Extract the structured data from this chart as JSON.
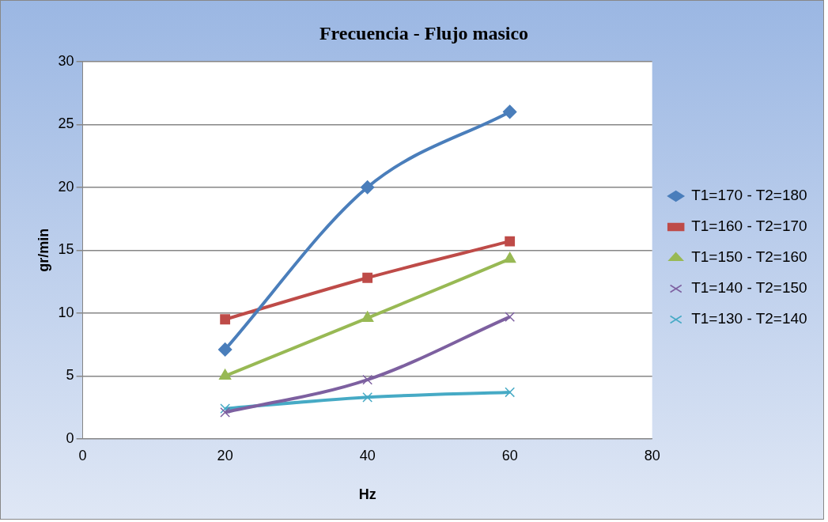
{
  "chart_data": {
    "type": "line",
    "title": "Frecuencia - Flujo masico",
    "xlabel": "Hz",
    "ylabel": "gr/min",
    "xlim": [
      0,
      80
    ],
    "xticks": [
      0,
      20,
      40,
      60,
      80
    ],
    "ylim": [
      0,
      30
    ],
    "yticks": [
      0,
      5,
      10,
      15,
      20,
      25,
      30
    ],
    "x": [
      20,
      40,
      60
    ],
    "grid": "y",
    "legend": "right",
    "series": [
      {
        "name": "T1=170 - T2=180",
        "color": "#4a7ebb",
        "marker": "diamond",
        "values": [
          7.1,
          20.0,
          26.0
        ]
      },
      {
        "name": "T1=160 - T2=170",
        "color": "#be4b48",
        "marker": "square",
        "values": [
          9.5,
          12.8,
          15.7
        ]
      },
      {
        "name": "T1=150 - T2=160",
        "color": "#98b954",
        "marker": "triangle",
        "values": [
          5.0,
          9.6,
          14.3
        ]
      },
      {
        "name": "T1=140 - T2=150",
        "color": "#7d60a0",
        "marker": "cross",
        "values": [
          2.1,
          4.7,
          9.7
        ]
      },
      {
        "name": "T1=130 - T2=140",
        "color": "#46aac5",
        "marker": "cross",
        "values": [
          2.4,
          3.3,
          3.7
        ]
      }
    ]
  }
}
